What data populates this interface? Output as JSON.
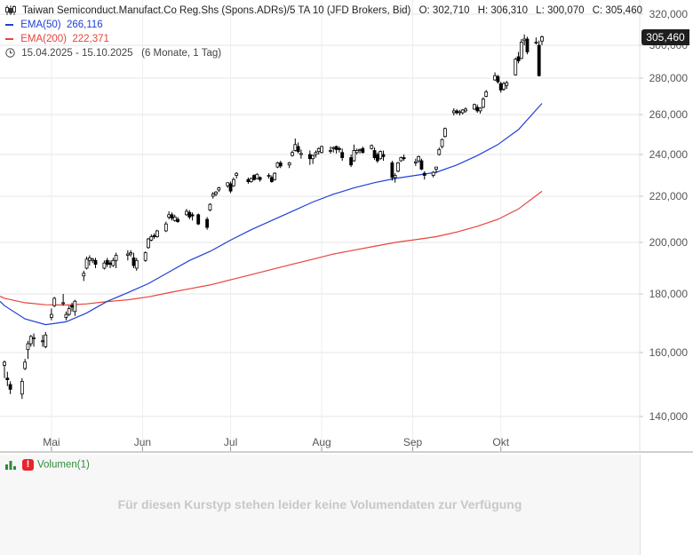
{
  "header": {
    "title": "Taiwan Semiconduct.Manufact.Co Reg.Shs (Spons.ADRs)/5 TA 10 (JFD Brokers, Bid)",
    "open": "O: 302,710",
    "high": "H: 306,310",
    "low": "L: 300,070",
    "close": "C: 305,460",
    "ema50_label": "EMA(50)",
    "ema50_value": "266,116",
    "ema200_label": "EMA(200)",
    "ema200_value": "222,371",
    "range": "15.04.2025 - 15.10.2025",
    "range_detail": "(6 Monate, 1 Tag)"
  },
  "last_price_tag": "305,460",
  "volume": {
    "label": "Volumen(1)",
    "message": "Für diesen Kurstyp stehen leider keine Volumendaten zur Verfügung"
  },
  "colors": {
    "ema50": "#1f3fd9",
    "ema200": "#e8433a",
    "candle": "#000000",
    "grid": "#e6e6e6",
    "volume_label": "#2e8b3a"
  },
  "chart_data": {
    "type": "candlestick",
    "x_range": [
      "2025-04-15",
      "2025-10-15"
    ],
    "ylim": [
      130,
      324
    ],
    "y_ticks": [
      140,
      160,
      180,
      200,
      220,
      240,
      260,
      280,
      300,
      320
    ],
    "y_tick_labels": [
      "140,000",
      "160,000",
      "180,000",
      "200,000",
      "220,000",
      "240,000",
      "260,000",
      "280,000",
      "300,000",
      "320,000"
    ],
    "x_ticks": [
      {
        "date": "2025-05-01",
        "label": "Mai"
      },
      {
        "date": "2025-06-01",
        "label": "Jun"
      },
      {
        "date": "2025-07-01",
        "label": "Jul"
      },
      {
        "date": "2025-08-01",
        "label": "Aug"
      },
      {
        "date": "2025-09-01",
        "label": "Sep"
      },
      {
        "date": "2025-10-01",
        "label": "Okt"
      }
    ],
    "ohlc": [
      [
        "2025-04-15",
        156.0,
        157.5,
        152.0,
        157.0
      ],
      [
        "2025-04-16",
        152.0,
        154.0,
        149.5,
        151.5
      ],
      [
        "2025-04-17",
        150.0,
        151.0,
        147.0,
        148.5
      ],
      [
        "2025-04-21",
        147.0,
        152.0,
        145.5,
        151.0
      ],
      [
        "2025-04-22",
        155.0,
        158.0,
        154.5,
        157.0
      ],
      [
        "2025-04-23",
        161.0,
        164.0,
        158.0,
        163.0
      ],
      [
        "2025-04-24",
        163.0,
        166.0,
        162.0,
        165.5
      ],
      [
        "2025-04-25",
        165.0,
        166.5,
        162.0,
        165.0
      ],
      [
        "2025-04-28",
        164.0,
        166.0,
        162.0,
        164.0
      ],
      [
        "2025-04-29",
        162.0,
        167.0,
        161.5,
        166.0
      ],
      [
        "2025-05-01",
        172.0,
        175.0,
        171.0,
        173.0
      ],
      [
        "2025-05-02",
        176.0,
        179.0,
        175.5,
        178.5
      ],
      [
        "2025-05-05",
        177.0,
        180.0,
        176.0,
        177.0
      ],
      [
        "2025-05-06",
        172.0,
        174.0,
        171.0,
        173.0
      ],
      [
        "2025-05-07",
        173.0,
        176.0,
        172.5,
        175.0
      ],
      [
        "2025-05-08",
        176.0,
        177.0,
        174.0,
        175.5
      ],
      [
        "2025-05-09",
        174.0,
        178.0,
        172.5,
        177.5
      ],
      [
        "2025-05-12",
        187.0,
        189.0,
        185.0,
        188.0
      ],
      [
        "2025-05-13",
        190.0,
        194.5,
        189.5,
        193.5
      ],
      [
        "2025-05-14",
        193.0,
        195.0,
        191.0,
        194.0
      ],
      [
        "2025-05-15",
        193.0,
        194.0,
        192.0,
        193.5
      ],
      [
        "2025-05-16",
        193.0,
        194.0,
        190.0,
        191.5
      ],
      [
        "2025-05-19",
        190.0,
        193.0,
        189.5,
        192.0
      ],
      [
        "2025-05-20",
        193.0,
        194.0,
        190.5,
        191.5
      ],
      [
        "2025-05-21",
        192.0,
        193.0,
        190.0,
        191.5
      ],
      [
        "2025-05-22",
        191.0,
        194.0,
        190.5,
        193.0
      ],
      [
        "2025-05-23",
        193.0,
        196.0,
        190.0,
        195.0
      ],
      [
        "2025-05-27",
        195.0,
        197.0,
        193.0,
        195.5
      ],
      [
        "2025-05-28",
        195.5,
        197.0,
        194.5,
        196.0
      ],
      [
        "2025-05-29",
        194.0,
        196.0,
        190.0,
        191.0
      ],
      [
        "2025-05-30",
        190.0,
        194.0,
        189.0,
        193.0
      ],
      [
        "2025-06-02",
        193.0,
        196.5,
        192.5,
        196.0
      ],
      [
        "2025-06-03",
        198.0,
        202.0,
        197.5,
        201.5
      ],
      [
        "2025-06-04",
        201.0,
        203.5,
        200.5,
        202.5
      ],
      [
        "2025-06-05",
        203.0,
        204.0,
        201.5,
        202.5
      ],
      [
        "2025-06-06",
        202.5,
        205.5,
        202.0,
        205.0
      ],
      [
        "2025-06-09",
        205.0,
        209.0,
        204.5,
        208.0
      ],
      [
        "2025-06-10",
        211.0,
        213.5,
        210.0,
        212.0
      ],
      [
        "2025-06-11",
        212.0,
        213.0,
        209.5,
        210.5
      ],
      [
        "2025-06-12",
        209.5,
        212.0,
        209.0,
        211.0
      ],
      [
        "2025-06-13",
        210.0,
        211.0,
        208.5,
        209.0
      ],
      [
        "2025-06-16",
        212.0,
        214.5,
        211.5,
        213.5
      ],
      [
        "2025-06-17",
        213.0,
        214.0,
        210.0,
        211.0
      ],
      [
        "2025-06-18",
        212.0,
        213.0,
        209.5,
        211.5
      ],
      [
        "2025-06-20",
        212.0,
        212.5,
        207.5,
        208.0
      ],
      [
        "2025-06-23",
        210.0,
        211.0,
        205.5,
        206.5
      ],
      [
        "2025-06-24",
        214.0,
        217.0,
        213.5,
        216.5
      ],
      [
        "2025-06-25",
        220.0,
        222.0,
        219.0,
        221.0
      ],
      [
        "2025-06-26",
        221.0,
        222.5,
        220.0,
        222.0
      ],
      [
        "2025-06-27",
        223.0,
        224.5,
        222.0,
        224.0
      ],
      [
        "2025-06-30",
        225.0,
        226.5,
        224.0,
        226.5
      ],
      [
        "2025-07-01",
        226.0,
        227.0,
        221.5,
        222.5
      ],
      [
        "2025-07-02",
        225.0,
        229.0,
        224.5,
        228.0
      ],
      [
        "2025-07-03",
        230.0,
        231.5,
        228.5,
        231.0
      ],
      [
        "2025-07-07",
        228.0,
        229.0,
        226.0,
        227.0
      ],
      [
        "2025-07-08",
        227.0,
        229.0,
        226.5,
        228.5
      ],
      [
        "2025-07-09",
        230.0,
        230.5,
        227.5,
        228.0
      ],
      [
        "2025-07-10",
        228.5,
        231.0,
        228.0,
        230.5
      ],
      [
        "2025-07-11",
        229.0,
        229.5,
        227.0,
        228.0
      ],
      [
        "2025-07-14",
        230.0,
        231.0,
        228.5,
        230.0
      ],
      [
        "2025-07-15",
        229.0,
        230.0,
        226.5,
        227.0
      ],
      [
        "2025-07-16",
        228.0,
        231.5,
        227.5,
        231.0
      ],
      [
        "2025-07-17",
        234.0,
        236.5,
        233.5,
        236.0
      ],
      [
        "2025-07-18",
        236.0,
        237.0,
        233.5,
        234.5
      ],
      [
        "2025-07-21",
        235.0,
        236.5,
        233.5,
        236.0
      ],
      [
        "2025-07-22",
        239.5,
        242.0,
        239.0,
        241.0
      ],
      [
        "2025-07-23",
        242.0,
        248.0,
        241.5,
        245.0
      ],
      [
        "2025-07-24",
        244.0,
        246.0,
        240.5,
        241.5
      ],
      [
        "2025-07-25",
        240.0,
        242.5,
        238.0,
        240.5
      ],
      [
        "2025-07-28",
        240.0,
        242.0,
        235.0,
        238.0
      ],
      [
        "2025-07-29",
        238.0,
        240.0,
        235.5,
        239.5
      ],
      [
        "2025-07-30",
        240.0,
        242.0,
        238.5,
        241.0
      ],
      [
        "2025-07-31",
        241.5,
        243.5,
        240.0,
        243.0
      ],
      [
        "2025-08-01",
        241.0,
        244.5,
        240.5,
        244.0
      ],
      [
        "2025-08-04",
        242.0,
        244.0,
        240.5,
        242.0
      ],
      [
        "2025-08-05",
        243.0,
        244.0,
        241.0,
        243.5
      ],
      [
        "2025-08-06",
        244.0,
        244.5,
        240.5,
        242.5
      ],
      [
        "2025-08-07",
        243.0,
        244.0,
        241.0,
        242.5
      ],
      [
        "2025-08-08",
        241.0,
        243.0,
        237.0,
        238.5
      ],
      [
        "2025-08-11",
        238.5,
        240.0,
        234.0,
        235.0
      ],
      [
        "2025-08-12",
        237.0,
        245.0,
        236.5,
        242.0
      ],
      [
        "2025-08-13",
        241.0,
        243.0,
        240.0,
        242.0
      ],
      [
        "2025-08-14",
        242.0,
        243.0,
        240.5,
        242.5
      ],
      [
        "2025-08-15",
        243.0,
        244.0,
        240.5,
        241.0
      ],
      [
        "2025-08-18",
        243.0,
        245.0,
        242.5,
        244.5
      ],
      [
        "2025-08-19",
        242.0,
        243.5,
        237.5,
        238.5
      ],
      [
        "2025-08-20",
        240.0,
        241.0,
        236.0,
        237.0
      ],
      [
        "2025-08-21",
        238.0,
        242.0,
        237.5,
        241.5
      ],
      [
        "2025-08-22",
        240.0,
        242.0,
        237.0,
        239.0
      ],
      [
        "2025-08-25",
        236.0,
        237.0,
        227.5,
        229.0
      ],
      [
        "2025-08-26",
        229.0,
        231.0,
        226.5,
        230.0
      ],
      [
        "2025-08-27",
        232.0,
        236.5,
        231.5,
        236.0
      ],
      [
        "2025-08-28",
        237.0,
        239.0,
        236.5,
        238.5
      ],
      [
        "2025-08-29",
        238.5,
        240.0,
        237.0,
        238.0
      ],
      [
        "2025-09-02",
        236.0,
        238.0,
        234.5,
        236.5
      ],
      [
        "2025-09-03",
        237.0,
        239.5,
        236.0,
        239.0
      ],
      [
        "2025-09-04",
        237.0,
        238.0,
        232.5,
        233.0
      ],
      [
        "2025-09-05",
        231.0,
        232.0,
        228.0,
        230.0
      ],
      [
        "2025-09-08",
        230.0,
        232.0,
        229.0,
        231.5
      ],
      [
        "2025-09-09",
        233.0,
        234.0,
        231.0,
        234.0
      ],
      [
        "2025-09-10",
        240.0,
        243.5,
        239.5,
        242.5
      ],
      [
        "2025-09-11",
        244.0,
        248.0,
        243.0,
        247.5
      ],
      [
        "2025-09-12",
        249.0,
        253.5,
        248.5,
        253.0
      ],
      [
        "2025-09-15",
        261.0,
        263.5,
        259.5,
        262.0
      ],
      [
        "2025-09-16",
        262.0,
        263.0,
        260.0,
        261.0
      ],
      [
        "2025-09-17",
        261.0,
        262.5,
        259.5,
        261.5
      ],
      [
        "2025-09-18",
        261.0,
        263.0,
        260.0,
        262.5
      ],
      [
        "2025-09-19",
        262.0,
        264.0,
        261.0,
        263.0
      ],
      [
        "2025-09-22",
        263.0,
        266.0,
        262.5,
        265.5
      ],
      [
        "2025-09-23",
        264.0,
        265.5,
        261.0,
        262.0
      ],
      [
        "2025-09-24",
        262.0,
        264.0,
        260.5,
        263.5
      ],
      [
        "2025-09-25",
        264.0,
        269.5,
        263.5,
        268.5
      ],
      [
        "2025-09-26",
        270.0,
        273.5,
        269.5,
        272.5
      ],
      [
        "2025-09-29",
        279.0,
        283.5,
        278.5,
        281.5
      ],
      [
        "2025-09-30",
        281.0,
        282.0,
        277.0,
        278.0
      ],
      [
        "2025-10-01",
        277.0,
        278.0,
        272.0,
        273.5
      ],
      [
        "2025-10-02",
        274.0,
        278.0,
        273.0,
        277.0
      ],
      [
        "2025-10-03",
        276.0,
        278.5,
        274.0,
        277.5
      ],
      [
        "2025-10-06",
        282.0,
        292.5,
        281.5,
        291.5
      ],
      [
        "2025-10-07",
        293.0,
        296.0,
        289.0,
        290.5
      ],
      [
        "2025-10-08",
        292.0,
        304.0,
        291.5,
        302.0
      ],
      [
        "2025-10-09",
        303.0,
        307.0,
        300.0,
        304.0
      ],
      [
        "2025-10-10",
        304.0,
        305.5,
        294.5,
        296.0
      ],
      [
        "2025-10-13",
        301.5,
        305.0,
        300.5,
        302.0
      ],
      [
        "2025-10-14",
        300.0,
        303.0,
        281.0,
        281.5
      ],
      [
        "2025-10-15",
        302.7,
        306.31,
        300.07,
        305.46
      ]
    ],
    "series": [
      {
        "name": "EMA(50)",
        "color": "#1f3fd9",
        "points": [
          [
            "2025-04-15",
            176.0
          ],
          [
            "2025-04-22",
            171.5
          ],
          [
            "2025-04-29",
            169.5
          ],
          [
            "2025-05-06",
            170.5
          ],
          [
            "2025-05-13",
            173.5
          ],
          [
            "2025-05-20",
            177.5
          ],
          [
            "2025-05-27",
            180.5
          ],
          [
            "2025-06-03",
            184.0
          ],
          [
            "2025-06-10",
            188.5
          ],
          [
            "2025-06-17",
            193.0
          ],
          [
            "2025-06-24",
            196.5
          ],
          [
            "2025-07-01",
            201.0
          ],
          [
            "2025-07-08",
            205.5
          ],
          [
            "2025-07-15",
            209.5
          ],
          [
            "2025-07-22",
            213.5
          ],
          [
            "2025-07-29",
            217.5
          ],
          [
            "2025-08-05",
            221.0
          ],
          [
            "2025-08-12",
            224.0
          ],
          [
            "2025-08-19",
            226.5
          ],
          [
            "2025-08-26",
            228.5
          ],
          [
            "2025-09-02",
            230.0
          ],
          [
            "2025-09-09",
            231.5
          ],
          [
            "2025-09-16",
            235.0
          ],
          [
            "2025-09-23",
            239.5
          ],
          [
            "2025-09-30",
            245.0
          ],
          [
            "2025-10-07",
            252.5
          ],
          [
            "2025-10-15",
            266.1
          ]
        ]
      },
      {
        "name": "EMA(200)",
        "color": "#e8433a",
        "points": [
          [
            "2025-04-15",
            178.5
          ],
          [
            "2025-04-22",
            177.0
          ],
          [
            "2025-04-29",
            176.3
          ],
          [
            "2025-05-06",
            176.2
          ],
          [
            "2025-05-13",
            176.6
          ],
          [
            "2025-05-20",
            177.4
          ],
          [
            "2025-05-27",
            178.0
          ],
          [
            "2025-06-03",
            179.0
          ],
          [
            "2025-06-10",
            180.5
          ],
          [
            "2025-06-17",
            182.0
          ],
          [
            "2025-06-24",
            183.5
          ],
          [
            "2025-07-01",
            185.5
          ],
          [
            "2025-07-08",
            187.5
          ],
          [
            "2025-07-15",
            189.5
          ],
          [
            "2025-07-22",
            191.5
          ],
          [
            "2025-07-29",
            193.5
          ],
          [
            "2025-08-05",
            195.5
          ],
          [
            "2025-08-12",
            197.0
          ],
          [
            "2025-08-19",
            198.5
          ],
          [
            "2025-08-26",
            200.0
          ],
          [
            "2025-09-02",
            201.2
          ],
          [
            "2025-09-09",
            202.5
          ],
          [
            "2025-09-16",
            204.5
          ],
          [
            "2025-09-23",
            207.0
          ],
          [
            "2025-09-30",
            210.0
          ],
          [
            "2025-10-07",
            214.5
          ],
          [
            "2025-10-15",
            222.4
          ]
        ]
      }
    ],
    "grid": true,
    "legend": "top-left"
  }
}
